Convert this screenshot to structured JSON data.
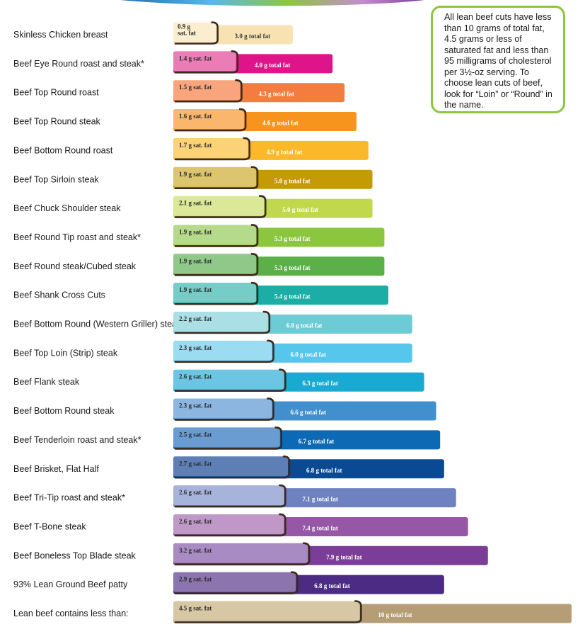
{
  "callout": {
    "text": "All lean beef cuts have less than 10 grams of total fat, 4.5 grams or less of saturated fat and less than 95 milligrams of cholesterol per 3½-oz serving. To choose lean cuts of beef, look for “Loin” or “Round” in the name."
  },
  "chart_data": {
    "type": "bar",
    "orientation": "horizontal",
    "grid": false,
    "categories": [
      "Skinless Chicken breast",
      "Beef Eye Round roast and steak*",
      "Beef Top Round roast",
      "Beef Top Round steak",
      "Beef Bottom Round roast",
      "Beef Top Sirloin steak",
      "Beef Chuck Shoulder steak",
      "Beef Round Tip roast and steak*",
      "Beef Round steak/Cubed steak",
      "Beef Shank Cross Cuts",
      "Beef Bottom Round (Western Griller) steak",
      "Beef Top Loin (Strip) steak",
      "Beef Flank steak",
      "Beef Bottom Round steak",
      "Beef Tenderloin roast and steak*",
      "Beef Brisket, Flat Half",
      "Beef Tri-Tip roast and steak*",
      "Beef T-Bone steak",
      "Beef Boneless Top Blade steak",
      "93% Lean Ground Beef patty",
      "Lean beef contains less than:"
    ],
    "series": [
      {
        "values": [
          0.9,
          1.4,
          1.5,
          1.6,
          1.7,
          1.9,
          2.1,
          1.9,
          1.9,
          1.9,
          2.2,
          2.3,
          2.6,
          2.3,
          2.5,
          2.7,
          2.6,
          2.6,
          3.2,
          2.9,
          4.5
        ],
        "labels": [
          "0.9 g sat. fat",
          "1.4 g sat. fat",
          "1.5 g sat. fat",
          "1.6 g sat. fat",
          "1.7 g sat. fat",
          "1.9 g sat. fat",
          "2.1 g sat. fat",
          "1.9 g sat. fat",
          "1.9 g sat. fat",
          "1.9 g sat. fat",
          "2.2 g sat. fat",
          "2.3 g sat. fat",
          "2.6 g sat. fat",
          "2.3 g sat. fat",
          "2.5 g sat. fat",
          "2.7 g sat. fat",
          "2.6 g sat. fat",
          "2.6 g sat. fat",
          "3.2 g sat. fat",
          "2.9 g sat. fat",
          "4.5 g sat. fat"
        ]
      },
      {
        "values": [
          3.0,
          4.0,
          4.3,
          4.6,
          4.9,
          5.0,
          5.0,
          5.3,
          5.3,
          5.4,
          6.0,
          6.0,
          6.3,
          6.6,
          6.7,
          6.8,
          7.1,
          7.4,
          7.9,
          6.8,
          10
        ],
        "labels": [
          "3.0 g total fat",
          "4.0 g total fat",
          "4.3 g total fat",
          "4.6 g total fat",
          "4.9 g total fat",
          "5.0 g total fat",
          "5.0 g total fat",
          "5.3 g total fat",
          "5.3 g total fat",
          "5.4 g total fat",
          "6.0 g total fat",
          "6.0 g total fat",
          "6.3 g total fat",
          "6.6 g total fat",
          "6.7 g total fat",
          "6.8 g total fat",
          "7.1 g total fat",
          "7.4 g total fat",
          "7.9 g total fat",
          "6.8 g total fat",
          "10 g total fat"
        ]
      }
    ],
    "colors": {
      "total": [
        "#f8e2b2",
        "#e0148a",
        "#f47c41",
        "#f7941d",
        "#fbb829",
        "#c49a07",
        "#c2d84c",
        "#8cc63f",
        "#5bb049",
        "#1bada6",
        "#6ccbd5",
        "#56c7ec",
        "#19aad4",
        "#418fcd",
        "#0d69b3",
        "#0a4a94",
        "#6e82c2",
        "#9557a6",
        "#7b3d98",
        "#4b2b84",
        "#b59e75"
      ],
      "sat": [
        "#fbeed0",
        "#ea7cb6",
        "#f8a57d",
        "#f9b66c",
        "#fcd278",
        "#dcc56e",
        "#dbe898",
        "#b6da8c",
        "#90c88a",
        "#76cdc8",
        "#a9dfe5",
        "#9cdcf3",
        "#6cc6e3",
        "#8cb6e0",
        "#6a9bd1",
        "#5d7fb6",
        "#a8b3dc",
        "#bf98c8",
        "#a88bc2",
        "#8c75ae",
        "#d7c7a4"
      ],
      "total_label_dark_rows": [
        0
      ]
    }
  }
}
